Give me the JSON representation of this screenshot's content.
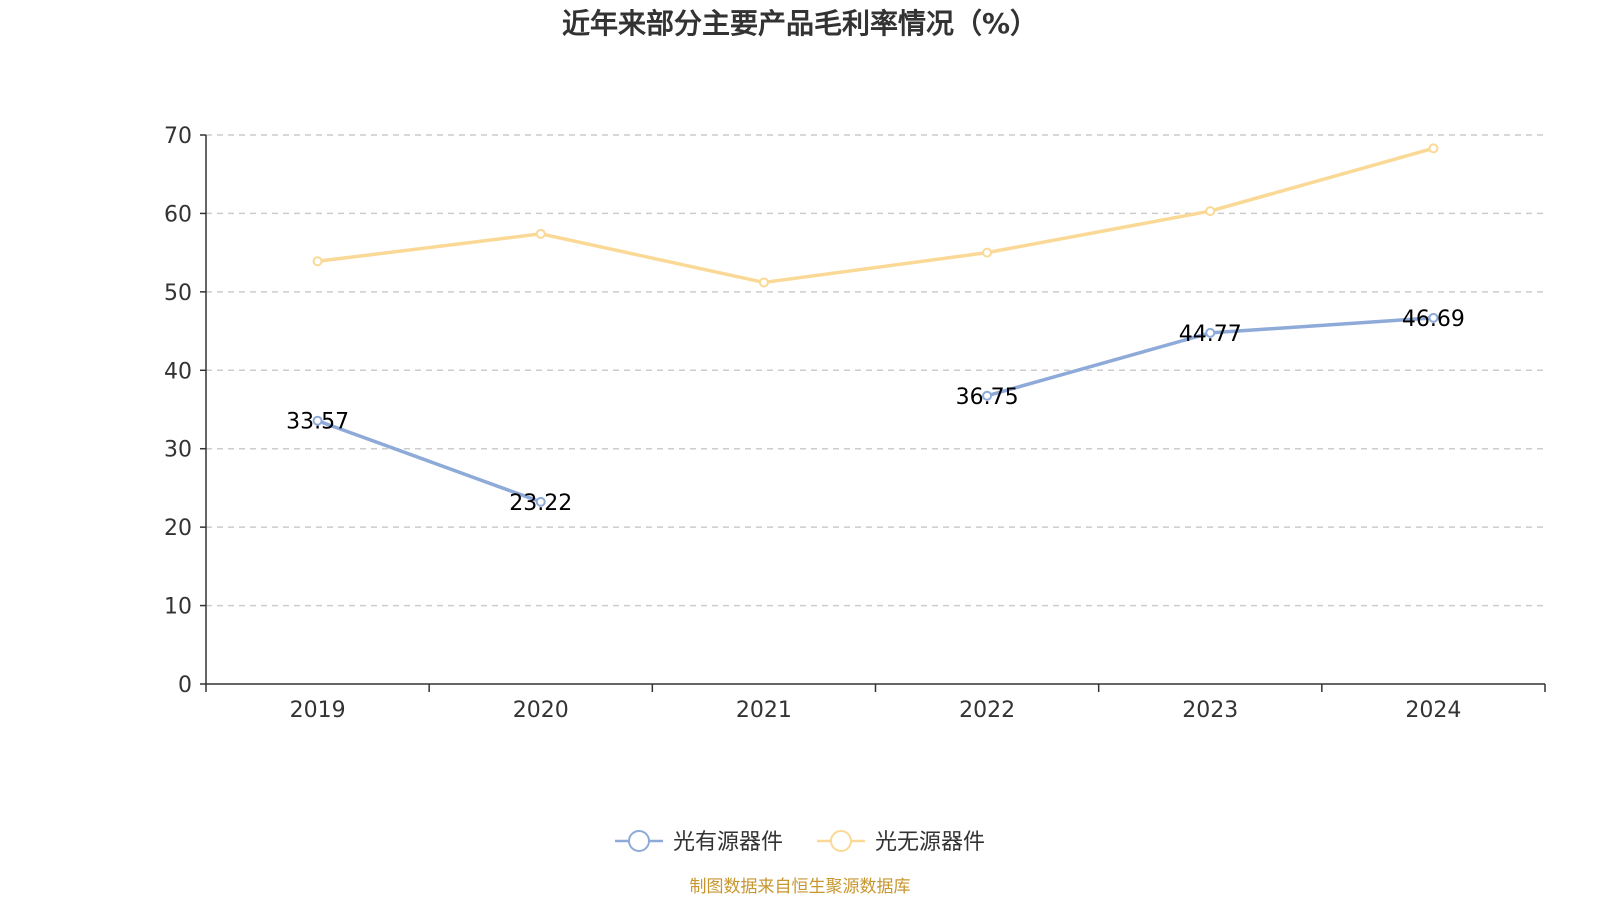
{
  "chart_data": {
    "type": "line",
    "title": "近年来部分主要产品毛利率情况（%）",
    "categories": [
      "2019",
      "2020",
      "2021",
      "2022",
      "2023",
      "2024"
    ],
    "ylim": [
      0,
      70
    ],
    "yticks": [
      0,
      10,
      20,
      30,
      40,
      50,
      60,
      70
    ],
    "grid": true,
    "legend_position": "bottom-center",
    "series": [
      {
        "name": "光有源器件",
        "color": "#8eaad8",
        "values": [
          33.57,
          23.22,
          null,
          36.75,
          44.77,
          46.69
        ],
        "labels": [
          "33.57",
          "23.22",
          "",
          "36.75",
          "44.77",
          "46.69"
        ]
      },
      {
        "name": "光无源器件",
        "color": "#fad996",
        "values": [
          53.9,
          57.4,
          51.2,
          55.0,
          60.3,
          68.3
        ],
        "labels": [
          "",
          "",
          "",
          "",
          "",
          ""
        ]
      }
    ]
  },
  "source_note": "制图数据来自恒生聚源数据库"
}
